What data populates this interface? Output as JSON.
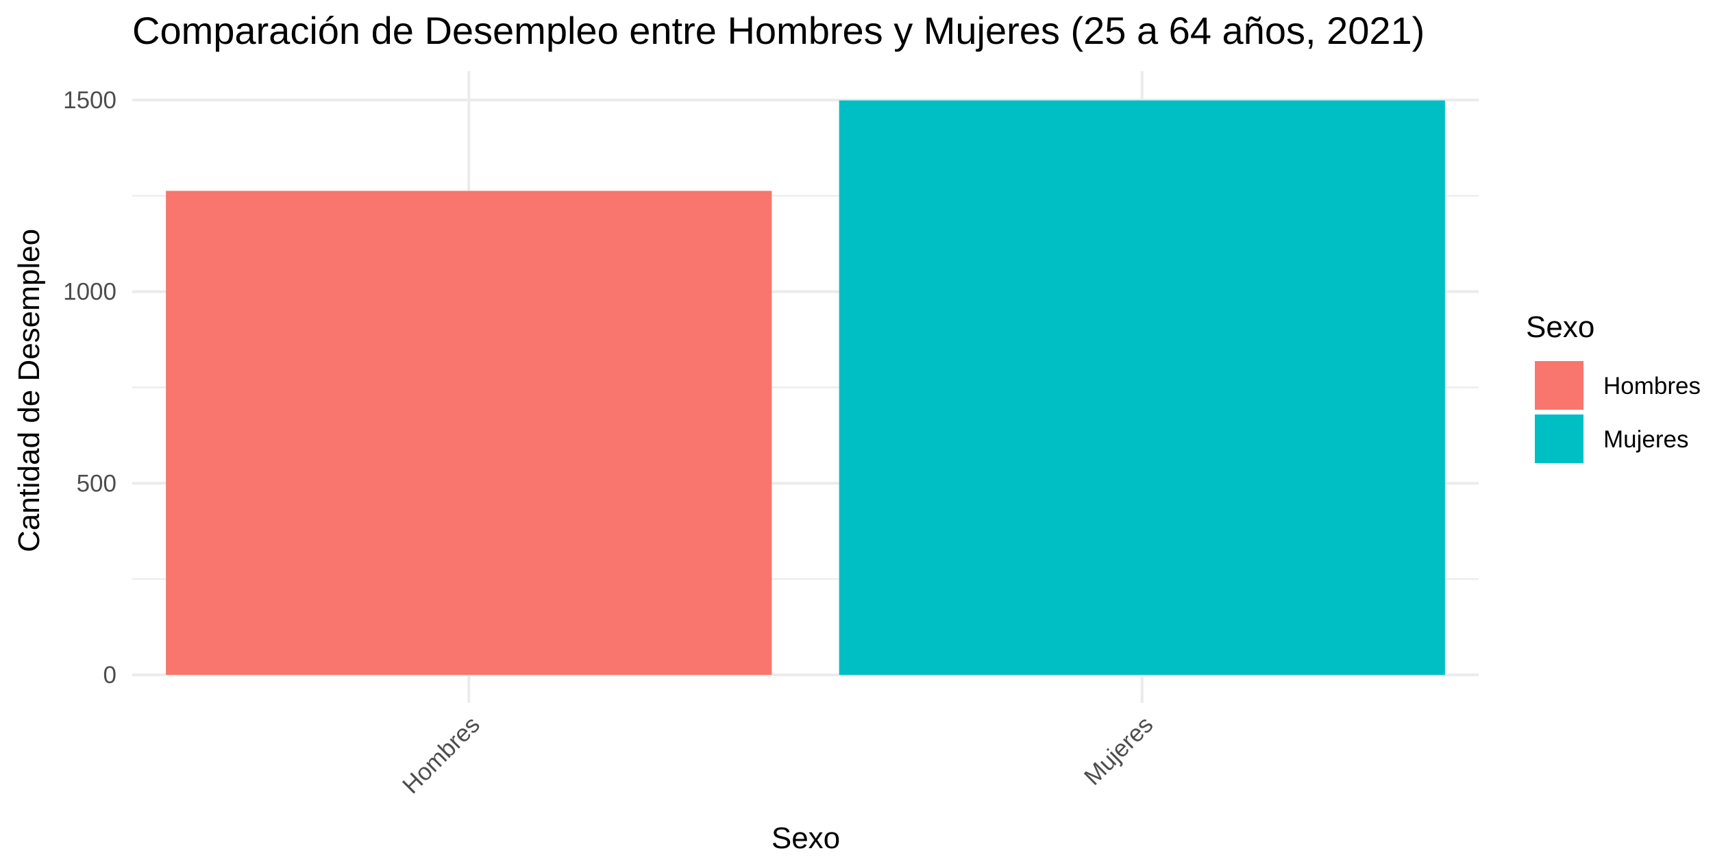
{
  "chart_data": {
    "type": "bar",
    "title": "Comparación de Desempleo entre Hombres y Mujeres (25 a 64 años, 2021)",
    "xlabel": "Sexo",
    "ylabel": "Cantidad de Desempleo",
    "categories": [
      "Hombres",
      "Mujeres"
    ],
    "values": [
      1263,
      1499
    ],
    "colors": [
      "#F8766D",
      "#00BFC4"
    ],
    "ylim": [
      0,
      1575
    ],
    "yticks": [
      0,
      500,
      1000,
      1500
    ],
    "yminor": [
      250,
      750,
      1250
    ],
    "grid": true,
    "legend": {
      "title": "Sexo",
      "position": "right",
      "items": [
        {
          "label": "Hombres",
          "color": "#F8766D"
        },
        {
          "label": "Mujeres",
          "color": "#00BFC4"
        }
      ]
    }
  }
}
